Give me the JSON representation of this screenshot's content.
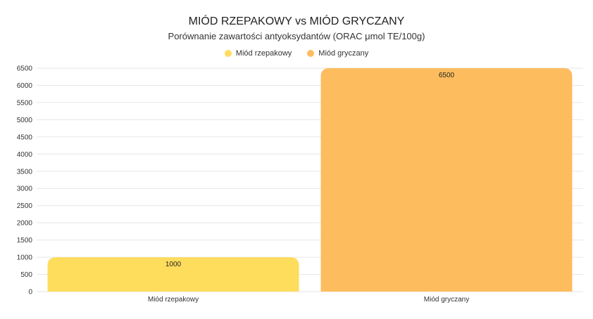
{
  "chart_data": {
    "type": "bar",
    "title": "MIÓD RZEPAKOWY vs MIÓD GRYCZANY",
    "subtitle": "Porównanie zawartości antyoksydantów (ORAC μmol TE/100g)",
    "categories": [
      "Miód rzepakowy",
      "Miód gryczany"
    ],
    "values": [
      1000,
      6500
    ],
    "colors": [
      "#FFDD5C",
      "#FDBD5E"
    ],
    "legend": [
      "Miód rzepakowy",
      "Miód gryczany"
    ],
    "legend_position": "top",
    "ylim": [
      0,
      6500
    ],
    "yticks": [
      "0",
      "500",
      "1000",
      "1500",
      "2000",
      "2500",
      "3000",
      "3500",
      "4000",
      "4500",
      "5000",
      "5500",
      "6000",
      "6500"
    ],
    "data_labels": [
      "1000",
      "6500"
    ],
    "grid": true
  }
}
